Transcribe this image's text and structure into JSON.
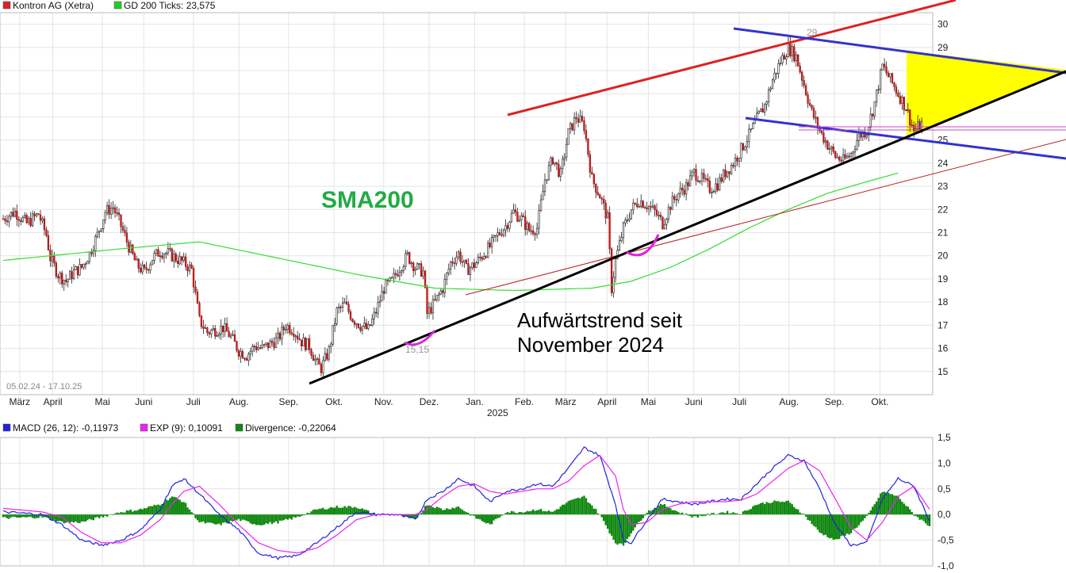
{
  "chart_data": [
    {
      "type": "candlestick",
      "title": "",
      "legend": [
        {
          "label": "Kontron AG (Xetra)",
          "color": "#dd2222"
        },
        {
          "label": "GD 200 Ticks: 23,575",
          "color": "#22cc22"
        }
      ],
      "date_range_label": "05.02.24 - 17.10.25",
      "x_tick_labels": [
        "März",
        "April",
        "Mai",
        "Juni",
        "Juli",
        "Aug.",
        "Sep.",
        "Okt.",
        "Nov.",
        "Dez.",
        "Jan.",
        "Feb.",
        "März",
        "April",
        "Mai",
        "Juni",
        "Juli",
        "Aug.",
        "Sep.",
        "Okt."
      ],
      "year_label": "2025",
      "ylim": [
        14,
        30.5
      ],
      "y_ticks": [
        15,
        16,
        17,
        18,
        19,
        20,
        21,
        22,
        23,
        24,
        25,
        26,
        27,
        28,
        29,
        30
      ],
      "grid": true,
      "annotations": {
        "sma_label": "SMA200",
        "trend_text_line1": "Aufwärtstrend seit",
        "trend_text_line2": "November 2024",
        "high_label": "29",
        "low_label": "15,15"
      },
      "price_path": [
        [
          0,
          21.6
        ],
        [
          3,
          21.9
        ],
        [
          6,
          21.4
        ],
        [
          9,
          21.8
        ],
        [
          11,
          20.9
        ],
        [
          12,
          19.9
        ],
        [
          14,
          19.2
        ],
        [
          16,
          18.9
        ],
        [
          18,
          19.3
        ],
        [
          20,
          19.5
        ],
        [
          22,
          20.1
        ],
        [
          24,
          20.9
        ],
        [
          26,
          21.9
        ],
        [
          28,
          22.1
        ],
        [
          30,
          21.3
        ],
        [
          32,
          20.4
        ],
        [
          34,
          19.6
        ],
        [
          36,
          19.3
        ],
        [
          38,
          19.9
        ],
        [
          40,
          20.2
        ],
        [
          42,
          20.1
        ],
        [
          44,
          19.9
        ],
        [
          46,
          19.7
        ],
        [
          48,
          19.4
        ],
        [
          50,
          17.2
        ],
        [
          52,
          16.7
        ],
        [
          54,
          16.8
        ],
        [
          56,
          16.9
        ],
        [
          58,
          16.5
        ],
        [
          60,
          15.9
        ],
        [
          62,
          15.7
        ],
        [
          64,
          16.1
        ],
        [
          66,
          16.0
        ],
        [
          68,
          16.2
        ],
        [
          70,
          16.4
        ],
        [
          72,
          17.0
        ],
        [
          74,
          16.8
        ],
        [
          76,
          16.3
        ],
        [
          78,
          16.1
        ],
        [
          80,
          15.3
        ],
        [
          81,
          15.15
        ],
        [
          83,
          15.9
        ],
        [
          85,
          17.6
        ],
        [
          87,
          17.9
        ],
        [
          89,
          17.3
        ],
        [
          91,
          17.0
        ],
        [
          93,
          16.8
        ],
        [
          95,
          17.6
        ],
        [
          97,
          18.6
        ],
        [
          99,
          18.9
        ],
        [
          101,
          19.5
        ],
        [
          103,
          20.0
        ],
        [
          105,
          19.5
        ],
        [
          107,
          19.3
        ],
        [
          108,
          17.5
        ],
        [
          110,
          18.0
        ],
        [
          112,
          18.6
        ],
        [
          114,
          19.7
        ],
        [
          116,
          20.1
        ],
        [
          118,
          19.4
        ],
        [
          120,
          19.6
        ],
        [
          122,
          20.0
        ],
        [
          124,
          20.4
        ],
        [
          126,
          20.9
        ],
        [
          128,
          21.3
        ],
        [
          130,
          21.9
        ],
        [
          132,
          21.6
        ],
        [
          134,
          21.1
        ],
        [
          136,
          21.2
        ],
        [
          138,
          23.3
        ],
        [
          140,
          24.2
        ],
        [
          142,
          23.5
        ],
        [
          144,
          25.3
        ],
        [
          146,
          26.0
        ],
        [
          148,
          25.6
        ],
        [
          150,
          23.3
        ],
        [
          152,
          22.6
        ],
        [
          154,
          21.6
        ],
        [
          155,
          18.6
        ],
        [
          156,
          19.8
        ],
        [
          158,
          21.2
        ],
        [
          160,
          22.0
        ],
        [
          162,
          22.4
        ],
        [
          164,
          22.2
        ],
        [
          166,
          21.9
        ],
        [
          168,
          21.4
        ],
        [
          170,
          22.2
        ],
        [
          172,
          22.7
        ],
        [
          174,
          23.0
        ],
        [
          176,
          23.6
        ],
        [
          178,
          23.3
        ],
        [
          180,
          22.9
        ],
        [
          182,
          23.1
        ],
        [
          184,
          23.6
        ],
        [
          186,
          24.0
        ],
        [
          188,
          24.6
        ],
        [
          190,
          25.2
        ],
        [
          192,
          25.9
        ],
        [
          194,
          26.5
        ],
        [
          196,
          27.6
        ],
        [
          198,
          28.4
        ],
        [
          200,
          29.0
        ],
        [
          202,
          28.6
        ],
        [
          204,
          27.4
        ],
        [
          206,
          26.2
        ],
        [
          208,
          25.4
        ],
        [
          210,
          24.8
        ],
        [
          212,
          24.3
        ],
        [
          214,
          24.1
        ],
        [
          216,
          24.4
        ],
        [
          218,
          25.2
        ],
        [
          220,
          25.4
        ],
        [
          222,
          26.6
        ],
        [
          224,
          28.2
        ],
        [
          226,
          27.6
        ],
        [
          228,
          27.0
        ],
        [
          230,
          26.4
        ],
        [
          232,
          25.4
        ],
        [
          234,
          25.7
        ]
      ],
      "sma_path": [
        [
          0,
          19.8
        ],
        [
          30,
          20.3
        ],
        [
          50,
          20.6
        ],
        [
          70,
          19.9
        ],
        [
          90,
          19.2
        ],
        [
          110,
          18.6
        ],
        [
          130,
          18.5
        ],
        [
          150,
          18.6
        ],
        [
          160,
          18.9
        ],
        [
          170,
          19.5
        ],
        [
          180,
          20.3
        ],
        [
          190,
          21.2
        ],
        [
          200,
          22.0
        ],
        [
          210,
          22.7
        ],
        [
          220,
          23.2
        ],
        [
          228,
          23.575
        ]
      ]
    },
    {
      "type": "line",
      "legend": [
        {
          "label": "MACD (26, 12): -0,11973",
          "color": "#2222dd"
        },
        {
          "label": "EXP (9): 0,10091",
          "color": "#ee22ee"
        },
        {
          "label": "Divergence: -0,22064",
          "color": "#118811"
        }
      ],
      "ylim": [
        -1.0,
        1.5
      ],
      "y_tick_labels": [
        "1,5",
        "1,0",
        "0,5",
        "0,0",
        "-0,5",
        "-1,0"
      ],
      "y_ticks": [
        1.5,
        1.0,
        0.5,
        0.0,
        -0.5,
        -1.0
      ],
      "macd": [
        [
          0,
          0.05
        ],
        [
          10,
          0.0
        ],
        [
          15,
          -0.2
        ],
        [
          20,
          -0.5
        ],
        [
          25,
          -0.6
        ],
        [
          30,
          -0.5
        ],
        [
          35,
          -0.3
        ],
        [
          40,
          0.1
        ],
        [
          43,
          0.55
        ],
        [
          46,
          0.7
        ],
        [
          50,
          0.4
        ],
        [
          55,
          0.0
        ],
        [
          60,
          -0.3
        ],
        [
          65,
          -0.75
        ],
        [
          70,
          -0.85
        ],
        [
          75,
          -0.8
        ],
        [
          80,
          -0.55
        ],
        [
          85,
          -0.25
        ],
        [
          90,
          0.05
        ],
        [
          95,
          0.0
        ],
        [
          100,
          0.0
        ],
        [
          105,
          -0.1
        ],
        [
          108,
          0.3
        ],
        [
          112,
          0.45
        ],
        [
          116,
          0.7
        ],
        [
          120,
          0.55
        ],
        [
          124,
          0.25
        ],
        [
          128,
          0.45
        ],
        [
          132,
          0.5
        ],
        [
          136,
          0.6
        ],
        [
          140,
          0.55
        ],
        [
          144,
          0.9
        ],
        [
          148,
          1.3
        ],
        [
          152,
          1.15
        ],
        [
          156,
          0.2
        ],
        [
          158,
          -0.5
        ],
        [
          160,
          -0.55
        ],
        [
          164,
          -0.1
        ],
        [
          168,
          0.3
        ],
        [
          172,
          0.25
        ],
        [
          176,
          0.2
        ],
        [
          180,
          0.25
        ],
        [
          184,
          0.3
        ],
        [
          188,
          0.3
        ],
        [
          192,
          0.6
        ],
        [
          196,
          0.9
        ],
        [
          200,
          1.15
        ],
        [
          204,
          1.05
        ],
        [
          208,
          0.5
        ],
        [
          212,
          -0.2
        ],
        [
          216,
          -0.6
        ],
        [
          220,
          -0.55
        ],
        [
          224,
          0.3
        ],
        [
          228,
          0.7
        ],
        [
          232,
          0.55
        ],
        [
          236,
          -0.12
        ]
      ],
      "exp": [
        [
          0,
          0.12
        ],
        [
          10,
          0.05
        ],
        [
          15,
          -0.05
        ],
        [
          20,
          -0.35
        ],
        [
          25,
          -0.55
        ],
        [
          30,
          -0.55
        ],
        [
          35,
          -0.4
        ],
        [
          40,
          -0.1
        ],
        [
          43,
          0.2
        ],
        [
          46,
          0.45
        ],
        [
          50,
          0.55
        ],
        [
          55,
          0.2
        ],
        [
          60,
          -0.2
        ],
        [
          65,
          -0.55
        ],
        [
          70,
          -0.7
        ],
        [
          75,
          -0.75
        ],
        [
          80,
          -0.65
        ],
        [
          85,
          -0.4
        ],
        [
          90,
          -0.1
        ],
        [
          95,
          0.0
        ],
        [
          100,
          0.0
        ],
        [
          105,
          0.0
        ],
        [
          108,
          0.1
        ],
        [
          112,
          0.35
        ],
        [
          116,
          0.55
        ],
        [
          120,
          0.6
        ],
        [
          124,
          0.45
        ],
        [
          128,
          0.4
        ],
        [
          132,
          0.45
        ],
        [
          136,
          0.5
        ],
        [
          140,
          0.5
        ],
        [
          144,
          0.65
        ],
        [
          148,
          0.95
        ],
        [
          152,
          1.15
        ],
        [
          156,
          0.75
        ],
        [
          158,
          0.1
        ],
        [
          160,
          -0.2
        ],
        [
          164,
          -0.15
        ],
        [
          168,
          0.1
        ],
        [
          172,
          0.2
        ],
        [
          176,
          0.25
        ],
        [
          180,
          0.25
        ],
        [
          184,
          0.25
        ],
        [
          188,
          0.28
        ],
        [
          192,
          0.4
        ],
        [
          196,
          0.65
        ],
        [
          200,
          0.9
        ],
        [
          204,
          1.05
        ],
        [
          208,
          0.85
        ],
        [
          212,
          0.3
        ],
        [
          216,
          -0.25
        ],
        [
          220,
          -0.5
        ],
        [
          224,
          -0.15
        ],
        [
          228,
          0.35
        ],
        [
          232,
          0.55
        ],
        [
          236,
          0.1
        ]
      ]
    }
  ]
}
